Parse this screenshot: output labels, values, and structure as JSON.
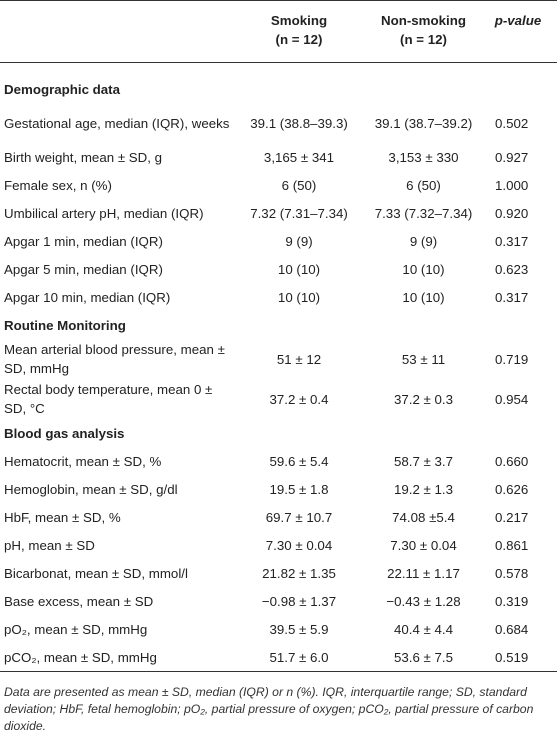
{
  "header": {
    "col1": "",
    "smoking": "Smoking",
    "smoking_n": "(n = 12)",
    "nonsmoking": "Non-smoking",
    "nonsmoking_n": "(n = 12)",
    "pvalue": "p-value"
  },
  "sections": [
    {
      "title": "Demographic data",
      "rows": [
        {
          "label": "Gestational age, median (IQR), weeks",
          "smoking": "39.1 (38.8–39.3)",
          "nonsmoking": "39.1 (38.7–39.2)",
          "p": "0.502"
        },
        {
          "label": "Birth weight, mean ± SD, g",
          "smoking": "3,165 ± 341",
          "nonsmoking": "3,153 ± 330",
          "p": "0.927"
        },
        {
          "label": "Female sex, n (%)",
          "smoking": "6 (50)",
          "nonsmoking": "6 (50)",
          "p": "1.000"
        },
        {
          "label": "Umbilical artery pH, median (IQR)",
          "smoking": "7.32 (7.31–7.34)",
          "nonsmoking": "7.33 (7.32–7.34)",
          "p": "0.920"
        },
        {
          "label": "Apgar 1 min, median (IQR)",
          "smoking": "9 (9)",
          "nonsmoking": "9 (9)",
          "p": "0.317"
        },
        {
          "label": "Apgar 5 min, median (IQR)",
          "smoking": "10 (10)",
          "nonsmoking": "10 (10)",
          "p": "0.623"
        },
        {
          "label": "Apgar 10 min, median (IQR)",
          "smoking": "10 (10)",
          "nonsmoking": "10 (10)",
          "p": "0.317"
        }
      ]
    },
    {
      "title": "Routine Monitoring",
      "rows": [
        {
          "label": "Mean arterial blood pressure, mean ± SD, mmHg",
          "smoking": "51 ± 12",
          "nonsmoking": "53 ± 11",
          "p": "0.719"
        },
        {
          "label": "Rectal body temperature, mean 0 ± SD, °C",
          "smoking": "37.2 ± 0.4",
          "nonsmoking": "37.2 ± 0.3",
          "p": "0.954"
        }
      ]
    },
    {
      "title": "Blood gas analysis",
      "rows": [
        {
          "label": "Hematocrit, mean ± SD, %",
          "smoking": "59.6 ± 5.4",
          "nonsmoking": "58.7 ± 3.7",
          "p": "0.660"
        },
        {
          "label": "Hemoglobin, mean ± SD, g/dl",
          "smoking": "19.5 ± 1.8",
          "nonsmoking": "19.2 ± 1.3",
          "p": "0.626"
        },
        {
          "label": "HbF, mean ± SD, %",
          "smoking": "69.7 ± 10.7",
          "nonsmoking": "74.08 ±5.4",
          "p": "0.217"
        },
        {
          "label": "pH, mean ± SD",
          "smoking": "7.30 ± 0.04",
          "nonsmoking": "7.30 ± 0.04",
          "p": "0.861"
        },
        {
          "label": "Bicarbonat, mean ± SD, mmol/l",
          "smoking": "21.82 ± 1.35",
          "nonsmoking": "22.11 ± 1.17",
          "p": "0.578"
        },
        {
          "label": "Base excess, mean ± SD",
          "smoking": "−0.98 ± 1.37",
          "nonsmoking": "−0.43 ± 1.28",
          "p": "0.319"
        },
        {
          "label": "pO₂, mean ± SD, mmHg",
          "smoking": "39.5 ± 5.9",
          "nonsmoking": "40.4 ± 4.4",
          "p": "0.684"
        },
        {
          "label": "pCO₂, mean ± SD, mmHg",
          "smoking": "51.7 ± 6.0",
          "nonsmoking": "53.6 ± 7.5",
          "p": "0.519"
        }
      ]
    }
  ],
  "footnote": "Data are presented as mean ± SD, median (IQR) or n (%). IQR, interquartile range; SD, standard deviation; HbF, fetal hemoglobin; pO₂, partial pressure of oxygen; pCO₂, partial pressure of carbon dioxide."
}
